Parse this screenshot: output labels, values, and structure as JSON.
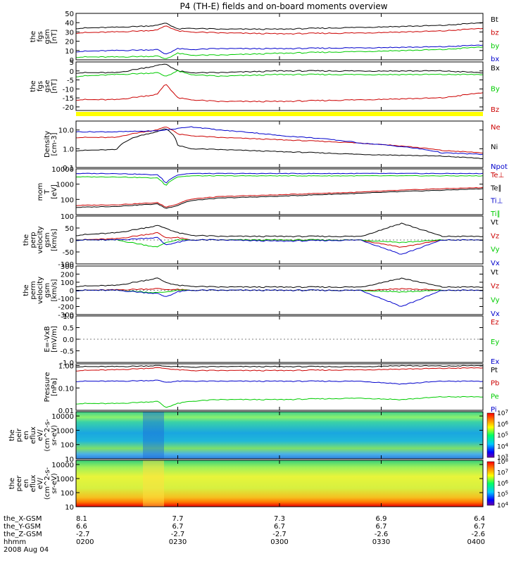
{
  "title": "P4 (TH-E) fields and on-board moments overview",
  "date": "2008 Aug 04",
  "footer": {
    "row_labels": [
      "the_X-GSM",
      "the_Y-GSM",
      "the_Z-GSM",
      "hhmm"
    ],
    "columns": [
      {
        "x": "8.1",
        "y": "6.6",
        "z": "-2.7",
        "t": "0200"
      },
      {
        "x": "7.7",
        "y": "6.7",
        "z": "-2.7",
        "t": "0230"
      },
      {
        "x": "7.3",
        "y": "6.7",
        "z": "-2.7",
        "t": "0300"
      },
      {
        "x": "6.9",
        "y": "6.7",
        "z": "-2.6",
        "t": "0330"
      },
      {
        "x": "6.4",
        "y": "6.7",
        "z": "-2.6",
        "t": "0400"
      }
    ]
  },
  "colors": {
    "black": "#000000",
    "red": "#cc0000",
    "green": "#00cc00",
    "blue": "#0000cc",
    "bar": "#ffff00"
  },
  "chart_data": [
    {
      "type": "line",
      "id": "fgs_mag",
      "ylabel": [
        "the",
        "fgs",
        "gsm",
        "[nT]"
      ],
      "ylim": [
        0,
        50
      ],
      "yscale": "linear",
      "ticks": [
        "0",
        "10",
        "20",
        "30",
        "40",
        "50"
      ],
      "legend": [
        {
          "name": "Bt",
          "color": "black"
        },
        {
          "name": "bz",
          "color": "red"
        },
        {
          "name": "by",
          "color": "green"
        },
        {
          "name": "bx",
          "color": "blue"
        }
      ],
      "x": [
        0,
        0.1,
        0.2,
        0.22,
        0.25,
        0.28,
        0.35,
        0.5,
        0.7,
        0.9,
        1.0
      ],
      "series": [
        {
          "name": "Bt",
          "color": "black",
          "values": [
            34,
            35,
            37,
            40,
            33,
            34,
            33,
            33,
            35,
            37,
            40
          ]
        },
        {
          "name": "bz",
          "color": "red",
          "values": [
            29,
            30,
            32,
            37,
            31,
            30,
            29,
            28,
            29,
            31,
            34
          ]
        },
        {
          "name": "by",
          "color": "green",
          "values": [
            3,
            3,
            4,
            1,
            7,
            5,
            5,
            7,
            9,
            11,
            14
          ]
        },
        {
          "name": "bx",
          "color": "blue",
          "values": [
            9,
            10,
            11,
            6,
            12,
            11,
            12,
            12,
            13,
            14,
            16
          ]
        }
      ]
    },
    {
      "type": "line",
      "id": "fgs_gse",
      "ylabel": [
        "the",
        "fgs",
        "gse",
        "[nT]"
      ],
      "ylim": [
        -22,
        5
      ],
      "yscale": "linear",
      "ticks": [
        "-20",
        "-15",
        "-10",
        "-5",
        "0",
        "5"
      ],
      "legend": [
        {
          "name": "Bx",
          "color": "black"
        },
        {
          "name": "By",
          "color": "green"
        },
        {
          "name": "Bz",
          "color": "red"
        }
      ],
      "x": [
        0,
        0.1,
        0.2,
        0.22,
        0.25,
        0.28,
        0.35,
        0.5,
        0.7,
        0.9,
        1.0
      ],
      "series": [
        {
          "name": "Bx",
          "color": "black",
          "values": [
            -1,
            -1,
            3,
            4,
            0,
            -1,
            -1,
            0,
            0,
            0,
            -1
          ]
        },
        {
          "name": "By",
          "color": "green",
          "values": [
            -3,
            -2,
            -1,
            -3,
            0,
            -2,
            -3,
            -2,
            -2,
            -2,
            -2
          ]
        },
        {
          "name": "Bz",
          "color": "red",
          "values": [
            -16,
            -16,
            -13,
            -7,
            -15,
            -16,
            -17,
            -17,
            -16,
            -15,
            -12
          ]
        }
      ]
    },
    {
      "type": "line",
      "id": "density",
      "ylabel": [
        "Density",
        "[cm-3]"
      ],
      "ylim": [
        0.1,
        30
      ],
      "yscale": "log",
      "ticks": [
        "0.1",
        "1.0",
        "10.0"
      ],
      "legend": [
        {
          "name": "Ne",
          "color": "red"
        },
        {
          "name": "Ni",
          "color": "black"
        },
        {
          "name": "Npot",
          "color": "blue"
        }
      ],
      "x": [
        0,
        0.1,
        0.2,
        0.22,
        0.25,
        0.28,
        0.35,
        0.5,
        0.7,
        0.9,
        1.0
      ],
      "series": [
        {
          "name": "Ne",
          "color": "red",
          "values": [
            4,
            4,
            10,
            15,
            6,
            5,
            4,
            3,
            2,
            0.8,
            0.6
          ]
        },
        {
          "name": "Ni",
          "color": "black",
          "values": [
            0.8,
            0.9,
            8,
            12,
            1.5,
            1,
            0.9,
            0.7,
            0.5,
            0.4,
            0.3
          ]
        },
        {
          "name": "Npot",
          "color": "blue",
          "values": [
            8,
            8,
            9,
            10,
            12,
            15,
            10,
            5,
            2,
            0.6,
            0.5
          ]
        }
      ]
    },
    {
      "type": "line",
      "id": "temperature",
      "ylabel": [
        "mom",
        "T",
        "[eV]"
      ],
      "ylim": [
        10,
        10000
      ],
      "yscale": "log",
      "ticks": [
        "100",
        "1000",
        "10000"
      ],
      "legend": [
        {
          "name": "Te⊥",
          "color": "red"
        },
        {
          "name": "Te∥",
          "color": "black"
        },
        {
          "name": "Ti⊥",
          "color": "blue"
        },
        {
          "name": "Ti∥",
          "color": "green"
        }
      ],
      "x": [
        0,
        0.1,
        0.2,
        0.22,
        0.25,
        0.28,
        0.35,
        0.5,
        0.7,
        0.9,
        1.0
      ],
      "series": [
        {
          "name": "Te⊥",
          "color": "red",
          "values": [
            40,
            45,
            60,
            30,
            50,
            100,
            150,
            200,
            300,
            500,
            600
          ]
        },
        {
          "name": "Te∥",
          "color": "black",
          "values": [
            30,
            35,
            50,
            25,
            40,
            80,
            120,
            160,
            250,
            400,
            500
          ]
        },
        {
          "name": "Ti⊥",
          "color": "blue",
          "values": [
            5000,
            5000,
            4000,
            1000,
            4000,
            5000,
            5000,
            5000,
            5000,
            5000,
            5000
          ]
        },
        {
          "name": "Ti∥",
          "color": "green",
          "values": [
            3000,
            3000,
            2500,
            700,
            3000,
            3500,
            3500,
            3500,
            3500,
            3500,
            3500
          ]
        }
      ]
    },
    {
      "type": "line",
      "id": "vel_perp",
      "ylabel": [
        "the",
        "perp",
        "velocity",
        "gsm",
        "[km/s]"
      ],
      "ylim": [
        -100,
        100
      ],
      "yscale": "linear",
      "ticks": [
        "-100",
        "-50",
        "0",
        "50",
        "100"
      ],
      "legend": [
        {
          "name": "Vt",
          "color": "black"
        },
        {
          "name": "Vz",
          "color": "red"
        },
        {
          "name": "Vy",
          "color": "green"
        },
        {
          "name": "Vx",
          "color": "blue"
        }
      ],
      "x": [
        0,
        0.1,
        0.2,
        0.22,
        0.25,
        0.28,
        0.35,
        0.5,
        0.7,
        0.8,
        0.9,
        1.0
      ],
      "series": [
        {
          "name": "Vt",
          "color": "black",
          "values": [
            20,
            30,
            60,
            50,
            30,
            20,
            15,
            15,
            15,
            70,
            15,
            15
          ]
        },
        {
          "name": "Vz",
          "color": "red",
          "values": [
            0,
            5,
            30,
            10,
            10,
            0,
            0,
            0,
            0,
            -30,
            0,
            0
          ]
        },
        {
          "name": "Vy",
          "color": "green",
          "values": [
            0,
            0,
            -30,
            -10,
            0,
            0,
            0,
            0,
            0,
            -10,
            0,
            0
          ]
        },
        {
          "name": "Vx",
          "color": "blue",
          "values": [
            0,
            0,
            10,
            -20,
            -10,
            0,
            0,
            -5,
            0,
            -60,
            0,
            0
          ]
        }
      ]
    },
    {
      "type": "line",
      "id": "vel_perm",
      "ylabel": [
        "the",
        "perm",
        "velocity",
        "gsm",
        "[km/s]"
      ],
      "ylim": [
        -300,
        300
      ],
      "yscale": "linear",
      "ticks": [
        "-300",
        "-200",
        "-100",
        "0",
        "100",
        "200",
        "300"
      ],
      "legend": [
        {
          "name": "Vt",
          "color": "black"
        },
        {
          "name": "Vz",
          "color": "red"
        },
        {
          "name": "Vy",
          "color": "green"
        },
        {
          "name": "Vx",
          "color": "blue"
        }
      ],
      "x": [
        0,
        0.1,
        0.2,
        0.22,
        0.25,
        0.28,
        0.35,
        0.5,
        0.7,
        0.8,
        0.9,
        1.0
      ],
      "series": [
        {
          "name": "Vt",
          "color": "black",
          "values": [
            50,
            60,
            150,
            100,
            60,
            50,
            40,
            40,
            40,
            150,
            40,
            40
          ]
        },
        {
          "name": "Vz",
          "color": "red",
          "values": [
            0,
            5,
            20,
            10,
            10,
            0,
            0,
            0,
            0,
            20,
            0,
            0
          ]
        },
        {
          "name": "Vy",
          "color": "green",
          "values": [
            0,
            0,
            -30,
            -20,
            0,
            0,
            0,
            0,
            0,
            -20,
            0,
            0
          ]
        },
        {
          "name": "Vx",
          "color": "blue",
          "values": [
            0,
            0,
            -40,
            -80,
            -20,
            0,
            0,
            0,
            0,
            -200,
            0,
            0
          ]
        }
      ]
    },
    {
      "type": "line",
      "id": "efield",
      "ylabel": [
        "E=-VxB",
        "[mV/m]"
      ],
      "ylim": [
        -1,
        1
      ],
      "yscale": "linear",
      "ticks": [
        "-1.0",
        "-0.5",
        "0.0",
        "0.5",
        "1.0"
      ],
      "legend": [
        {
          "name": "Ez",
          "color": "red"
        },
        {
          "name": "Ey",
          "color": "green"
        },
        {
          "name": "Ex",
          "color": "blue"
        }
      ],
      "x": [],
      "series": []
    },
    {
      "type": "line",
      "id": "pressure",
      "ylabel": [
        "Pressure",
        "[nPa]"
      ],
      "ylim": [
        0.01,
        1.2
      ],
      "yscale": "log",
      "ticks": [
        "0.01",
        "0.10",
        "1.00"
      ],
      "legend": [
        {
          "name": "Pt",
          "color": "black"
        },
        {
          "name": "Pb",
          "color": "red"
        },
        {
          "name": "Pe",
          "color": "green"
        },
        {
          "name": "Pi",
          "color": "blue"
        }
      ],
      "x": [
        0,
        0.1,
        0.2,
        0.22,
        0.25,
        0.28,
        0.35,
        0.5,
        0.7,
        0.8,
        0.9,
        1.0
      ],
      "series": [
        {
          "name": "Pt",
          "color": "black",
          "values": [
            0.9,
            0.9,
            1.0,
            0.95,
            0.9,
            0.85,
            0.9,
            0.9,
            0.9,
            1.0,
            0.95,
            1.0
          ]
        },
        {
          "name": "Pb",
          "color": "red",
          "values": [
            0.6,
            0.65,
            0.8,
            0.75,
            0.65,
            0.6,
            0.6,
            0.6,
            0.65,
            0.7,
            0.75,
            0.8
          ]
        },
        {
          "name": "Pe",
          "color": "green",
          "values": [
            0.02,
            0.02,
            0.025,
            0.013,
            0.02,
            0.025,
            0.03,
            0.03,
            0.035,
            0.03,
            0.04,
            0.04
          ]
        },
        {
          "name": "Pi",
          "color": "blue",
          "values": [
            0.2,
            0.2,
            0.22,
            0.18,
            0.2,
            0.2,
            0.2,
            0.2,
            0.2,
            0.15,
            0.2,
            0.2
          ]
        }
      ]
    },
    {
      "type": "heatmap",
      "id": "peir",
      "ylabel": [
        "the",
        "peir",
        "en",
        "eflux",
        "eV/",
        "(cm^2-s-",
        "sr-eV)"
      ],
      "ylim": [
        10,
        20000
      ],
      "yscale": "log",
      "ticks": [
        "10",
        "100",
        "1000",
        "10000"
      ],
      "colorbar": {
        "ticks": [
          "10^3",
          "10^4",
          "10^5",
          "10^6",
          "10^7"
        ],
        "range": [
          1000,
          10000000
        ]
      }
    },
    {
      "type": "heatmap",
      "id": "peer",
      "ylabel": [
        "the",
        "peer",
        "en",
        "eflux",
        "eV/",
        "(cm^2-s-",
        "sr-eV)"
      ],
      "ylim": [
        10,
        20000
      ],
      "yscale": "log",
      "ticks": [
        "10",
        "100",
        "1000",
        "10000"
      ],
      "colorbar": {
        "ticks": [
          "10^4",
          "10^5",
          "10^6",
          "10^7",
          "10^8"
        ],
        "range": [
          10000,
          100000000
        ]
      }
    }
  ]
}
